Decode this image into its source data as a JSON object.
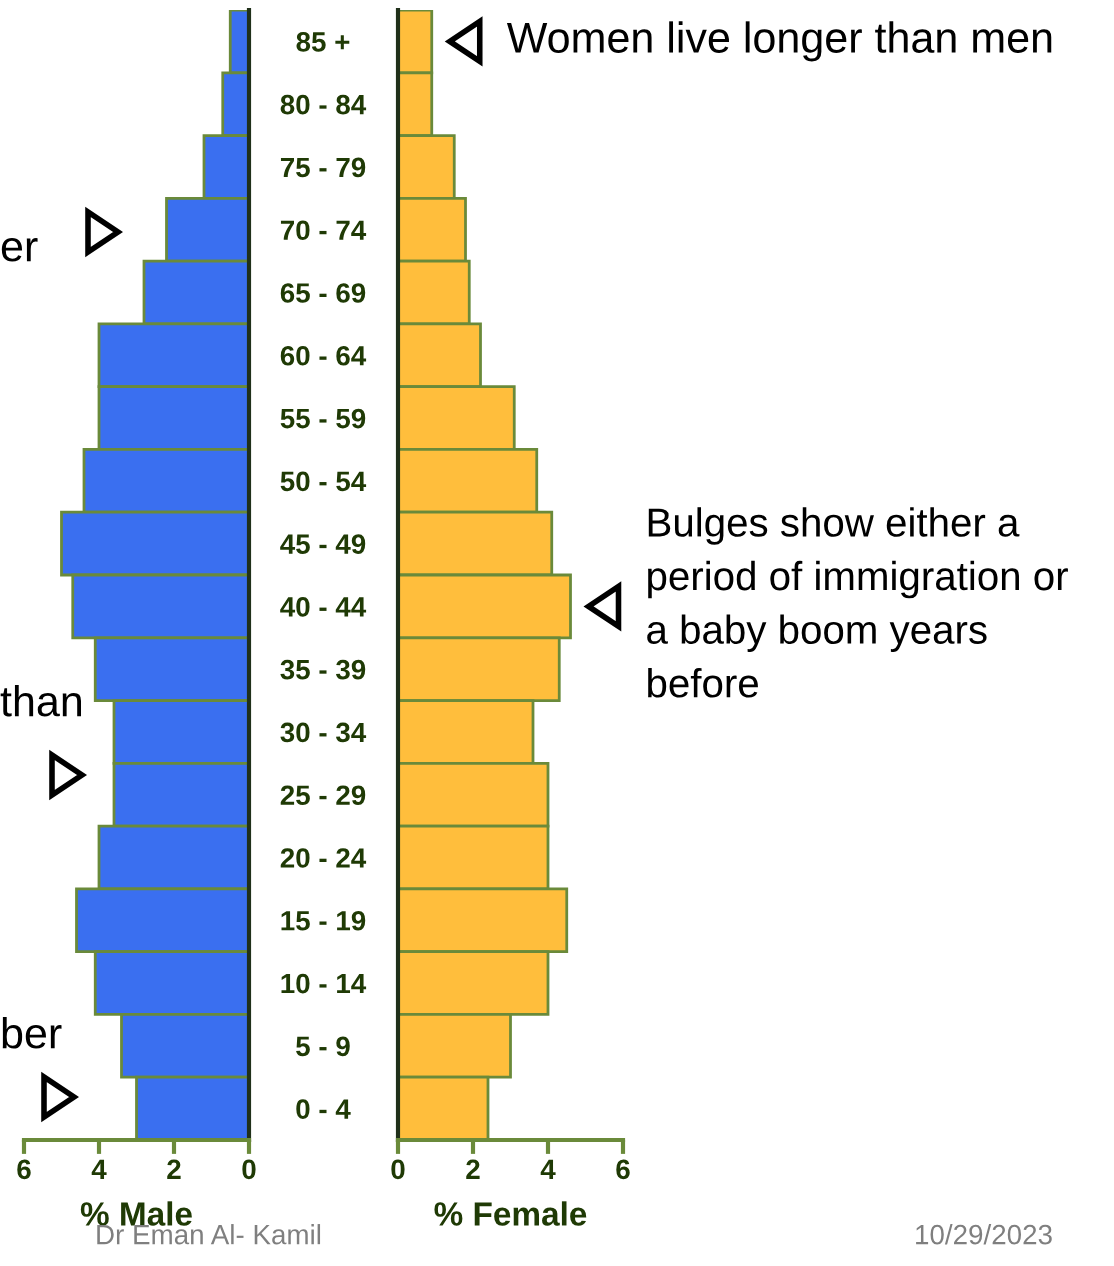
{
  "chart_data": [
    {
      "type": "bar",
      "orientation": "horizontal",
      "categories": [
        null,
        null,
        null,
        null,
        null,
        null,
        null,
        null,
        null,
        null,
        null,
        null,
        null,
        null,
        null,
        null,
        null,
        null
      ],
      "values": [
        0.5,
        0.7,
        1.2,
        2.2,
        2.8,
        4.0,
        4.0,
        4.4,
        5.0,
        4.7,
        4.1,
        3.6,
        3.6,
        4.0,
        4.6,
        4.1,
        3.4,
        3.0
      ],
      "color": "#3a6ff0",
      "xlim": [
        6,
        0
      ],
      "xticks": [
        6,
        4,
        2,
        0
      ],
      "xlabel": "% Male",
      "tick_labels": "x",
      "annotations": [
        "er",
        "than",
        "ber",
        "Dr Eman Al- Kamil"
      ]
    },
    {
      "type": "bar",
      "orientation": "horizontal",
      "categories": [
        "85 +",
        "80 - 84",
        "75 - 79",
        "70 - 74",
        "65 - 69",
        "60 - 64",
        "55 - 59",
        "50 - 54",
        "45 - 49",
        "40 - 44",
        "35 - 39",
        "30 - 34",
        "25 - 29",
        "20 - 24",
        "15 - 19",
        "10 - 14",
        "5 - 9",
        "0 - 4"
      ],
      "values": [
        0.9,
        0.9,
        1.5,
        1.8,
        1.9,
        2.2,
        3.1,
        3.7,
        4.1,
        4.6,
        4.3,
        3.6,
        4.0,
        4.0,
        4.5,
        4.0,
        3.0,
        2.4
      ],
      "color": "#ffbe3c",
      "xlim": [
        0,
        6
      ],
      "xticks": [
        0,
        2,
        4,
        6
      ],
      "xlabel": "% Female",
      "annotations": [
        {
          "text": "Women live longer than men",
          "x": 0.9,
          "y": "85 +"
        },
        {
          "text": "Bulges show either a\nperiod of immigration or\na baby boom years\nbefore",
          "x": 4.6,
          "y": "40 - 44"
        },
        "10/29/2023"
      ]
    }
  ]
}
